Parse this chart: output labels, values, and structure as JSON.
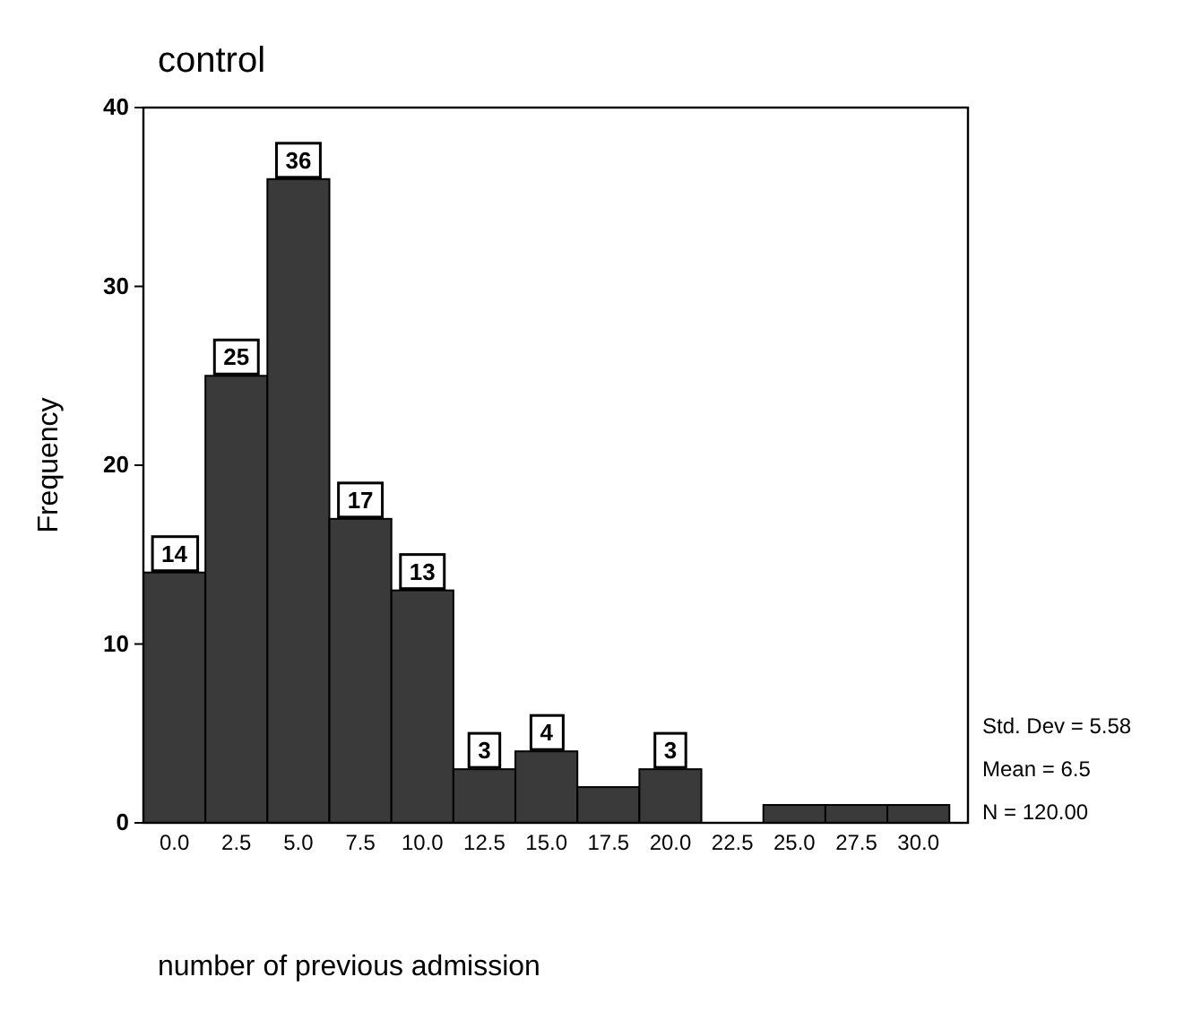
{
  "chart_data": {
    "type": "histogram",
    "title": "control",
    "xlabel": "number of previous admission",
    "ylabel": "Frequency",
    "bins": [
      -1.25,
      1.25,
      3.75,
      6.25,
      8.75,
      11.25,
      13.75,
      16.25,
      18.75,
      21.25,
      23.75,
      26.25,
      28.75,
      31.25
    ],
    "values": [
      14,
      25,
      36,
      17,
      13,
      3,
      4,
      2,
      3,
      0,
      1,
      1,
      1
    ],
    "value_labels": [
      "14",
      "25",
      "36",
      "17",
      "13",
      "3",
      "4",
      null,
      "3",
      null,
      null,
      null,
      null
    ],
    "color": "#3a3a3a",
    "xlim": [
      -1.25,
      32
    ],
    "xticks": [
      {
        "value": 0,
        "label": "0.0"
      },
      {
        "value": 2.5,
        "label": "2.5"
      },
      {
        "value": 5,
        "label": "5.0"
      },
      {
        "value": 7.5,
        "label": "7.5"
      },
      {
        "value": 10,
        "label": "10.0"
      },
      {
        "value": 12.5,
        "label": "12.5"
      },
      {
        "value": 15,
        "label": "15.0"
      },
      {
        "value": 17.5,
        "label": "17.5"
      },
      {
        "value": 20,
        "label": "20.0"
      },
      {
        "value": 22.5,
        "label": "22.5"
      },
      {
        "value": 25,
        "label": "25.0"
      },
      {
        "value": 27.5,
        "label": "27.5"
      },
      {
        "value": 30,
        "label": "30.0"
      }
    ],
    "ylim": [
      0,
      40
    ],
    "yticks": [
      0,
      10,
      20,
      30,
      40
    ],
    "annotations": [
      "Std. Dev = 5.58",
      "Mean = 6.5",
      "N = 120.00"
    ]
  }
}
